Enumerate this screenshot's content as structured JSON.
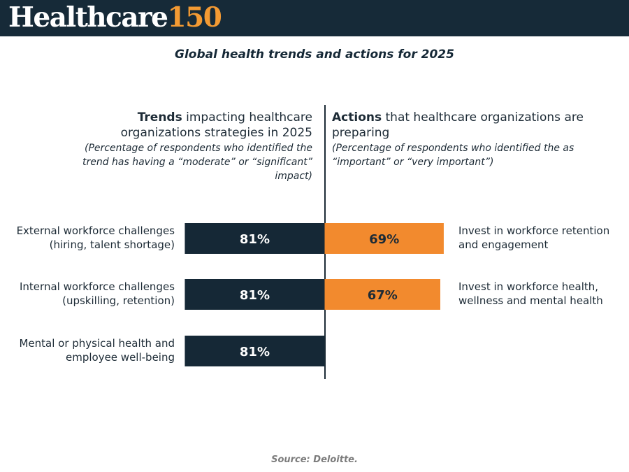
{
  "header": {
    "logo_word": "Healthcare",
    "logo_number": "150"
  },
  "colors": {
    "header_bg": "#162a38",
    "trend_bar": "#152836",
    "action_bar": "#f28a2e",
    "logo_accent": "#f39a33"
  },
  "left_heading": {
    "bold": "Trends",
    "rest": " impacting healthcare organizations strategies in 2025",
    "note": "(Percentage of respondents who identified the trend has having a “moderate” or “significant” impact)"
  },
  "right_heading": {
    "bold": "Actions",
    "rest": " that healthcare organizations are preparing",
    "note": "(Percentage of respondents who identified the as “important” or “very important”)"
  },
  "source": "Source: Deloitte.",
  "chart_data": {
    "type": "bar",
    "title": "Global health trends and actions for 2025",
    "xlim": [
      0,
      100
    ],
    "orientation": "horizontal-diverging",
    "series": [
      {
        "name": "Trends",
        "color": "#152836",
        "categories": [
          "External workforce challenges (hiring, talent shortage)",
          "Internal workforce challenges (upskilling, retention)",
          "Mental or physical health and employee well-being"
        ],
        "values": [
          81,
          81,
          81
        ],
        "labels": [
          "81%",
          "81%",
          "81%"
        ]
      },
      {
        "name": "Actions",
        "color": "#f28a2e",
        "categories": [
          "Invest in workforce retention and engagement",
          "Invest in workforce health, wellness and mental health"
        ],
        "values": [
          69,
          67
        ],
        "labels": [
          "69%",
          "67%"
        ]
      }
    ]
  }
}
